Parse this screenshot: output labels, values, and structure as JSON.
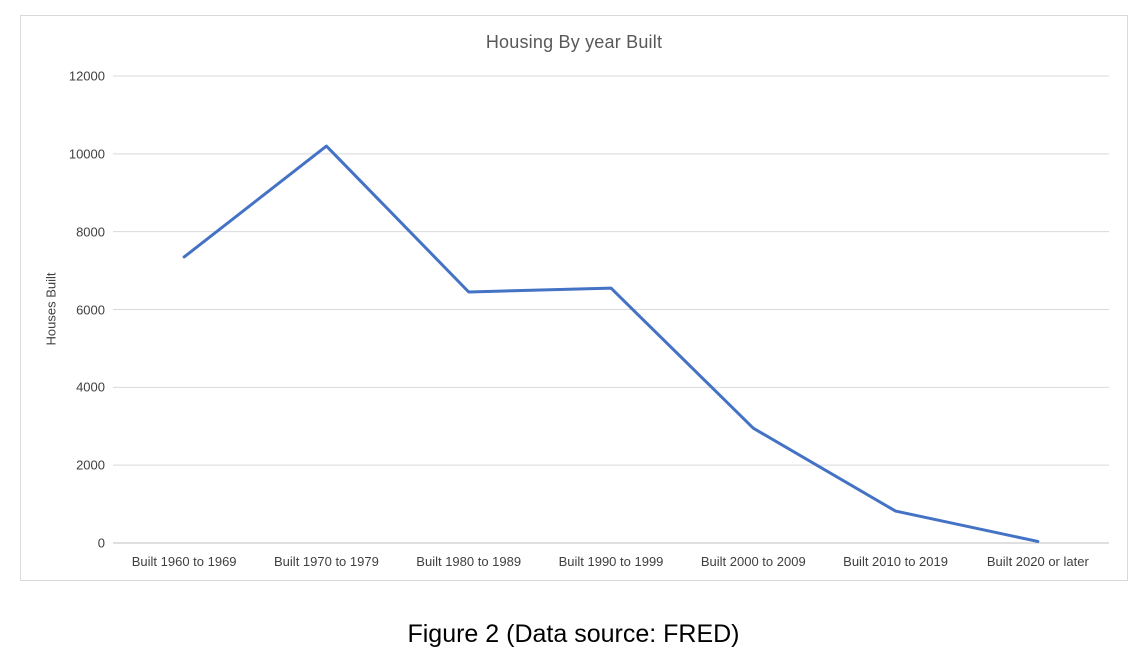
{
  "figure": {
    "caption": "Figure 2 (Data source: FRED)"
  },
  "chart_data": {
    "type": "line",
    "title": "Housing By year Built",
    "xlabel": "",
    "ylabel": "Houses Built",
    "categories": [
      "Built 1960 to 1969",
      "Built 1970 to 1979",
      "Built 1980 to 1989",
      "Built 1990 to 1999",
      "Built 2000 to 2009",
      "Built 2010 to 2019",
      "Built 2020 or later"
    ],
    "values": [
      7350,
      10200,
      6450,
      6550,
      2950,
      820,
      40
    ],
    "ylim": [
      0,
      12000
    ],
    "yticks": [
      12000,
      10000,
      8000,
      6000,
      4000,
      2000,
      0
    ],
    "grid": true,
    "legend_position": "none",
    "colors": {
      "line": "#4472C4",
      "gridline": "#d9d9d9",
      "axis_line": "#bfbfbf",
      "title_text": "#595959",
      "tick_text": "#404040",
      "frame_border": "#d9d9d9"
    }
  }
}
